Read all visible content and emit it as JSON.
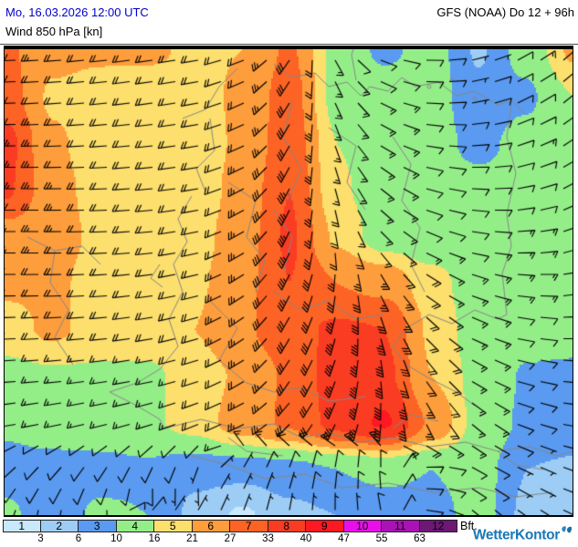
{
  "header": {
    "datetime": "Mo, 16.03.2026 12:00 UTC",
    "variable": "Wind 850 hPa [kn]",
    "model": "GFS (NOAA) Do 12 + 96h"
  },
  "legend": {
    "unit_label": "Bft.",
    "classes": [
      {
        "bft": "1",
        "color": "#c8e8fb"
      },
      {
        "bft": "2",
        "color": "#9dcdf5"
      },
      {
        "bft": "3",
        "color": "#5a9af0"
      },
      {
        "bft": "4",
        "color": "#94ee88"
      },
      {
        "bft": "5",
        "color": "#fcdf6d"
      },
      {
        "bft": "6",
        "color": "#fe9d3c"
      },
      {
        "bft": "7",
        "color": "#fc6325"
      },
      {
        "bft": "8",
        "color": "#fa3c23"
      },
      {
        "bft": "9",
        "color": "#fd1822"
      },
      {
        "bft": "10",
        "color": "#ea0fea"
      },
      {
        "bft": "11",
        "color": "#a912b5"
      },
      {
        "bft": "12",
        "color": "#6e1876"
      }
    ],
    "knot_thresholds": [
      "3",
      "6",
      "10",
      "16",
      "21",
      "27",
      "33",
      "40",
      "47",
      "55",
      "63"
    ]
  },
  "brand": {
    "name": "WetterKontor"
  },
  "chart_data": {
    "type": "wind-field-map",
    "units": "kn",
    "level": "850 hPa",
    "bft_knot_bounds": [
      3,
      6,
      10,
      16,
      21,
      27,
      33,
      40,
      47,
      55,
      63
    ],
    "grid": {
      "nx": 13,
      "ny": 11,
      "speeds_kn": [
        [
          28,
          23,
          22,
          22,
          20,
          21,
          28,
          14,
          9,
          12,
          5.5,
          12,
          22
        ],
        [
          30,
          20,
          18.5,
          18,
          19,
          22,
          30,
          14,
          13,
          12,
          7,
          9,
          16
        ],
        [
          35,
          22,
          18,
          18,
          18,
          22,
          31,
          16,
          13,
          12,
          8.5,
          12,
          15
        ],
        [
          34,
          23,
          19,
          18,
          18,
          23,
          33,
          17,
          13,
          12,
          12,
          12,
          12
        ],
        [
          24,
          23,
          20,
          18,
          19,
          24,
          34,
          20,
          13,
          12,
          12,
          13,
          12
        ],
        [
          22,
          22,
          19,
          19,
          20,
          25,
          33,
          27,
          25,
          18,
          13,
          15,
          13
        ],
        [
          19,
          22,
          19,
          19,
          21,
          26,
          31,
          34,
          33,
          20,
          13,
          12,
          12
        ],
        [
          14,
          15,
          15,
          15,
          18,
          22,
          28,
          36,
          35,
          21,
          14,
          9.5,
          9
        ],
        [
          11,
          13,
          14,
          15,
          18,
          24,
          28,
          35,
          41,
          26,
          14,
          9,
          8
        ],
        [
          8,
          8,
          8,
          9,
          7,
          7,
          8,
          10,
          11,
          10,
          12,
          6,
          5.5
        ],
        [
          11,
          7,
          11,
          10,
          5,
          2.5,
          5,
          6,
          8,
          8,
          12,
          5,
          4
        ]
      ],
      "dir_from_deg": [
        [
          268,
          266,
          264,
          262,
          261,
          250,
          215,
          150,
          110,
          90,
          75,
          60,
          48
        ],
        [
          268,
          266,
          264,
          262,
          260,
          246,
          212,
          155,
          115,
          92,
          78,
          62,
          50
        ],
        [
          270,
          268,
          266,
          264,
          261,
          246,
          210,
          160,
          120,
          98,
          85,
          70,
          55
        ],
        [
          271,
          270,
          268,
          265,
          261,
          243,
          208,
          165,
          128,
          105,
          92,
          78,
          60
        ],
        [
          271,
          270,
          268,
          265,
          259,
          241,
          206,
          170,
          135,
          112,
          98,
          85,
          70
        ],
        [
          270,
          269,
          267,
          263,
          257,
          238,
          206,
          186,
          150,
          122,
          108,
          94,
          80
        ],
        [
          268,
          267,
          265,
          261,
          255,
          236,
          210,
          195,
          163,
          133,
          113,
          99,
          88
        ],
        [
          266,
          265,
          262,
          259,
          253,
          240,
          214,
          200,
          174,
          143,
          119,
          104,
          94
        ],
        [
          261,
          259,
          257,
          254,
          249,
          244,
          224,
          204,
          184,
          153,
          128,
          109,
          99
        ],
        [
          228,
          222,
          214,
          205,
          200,
          30,
          20,
          10,
          0,
          90,
          120,
          115,
          109
        ],
        [
          198,
          190,
          180,
          40,
          30,
          20,
          10,
          0,
          350,
          100,
          130,
          125,
          114
        ]
      ]
    }
  }
}
